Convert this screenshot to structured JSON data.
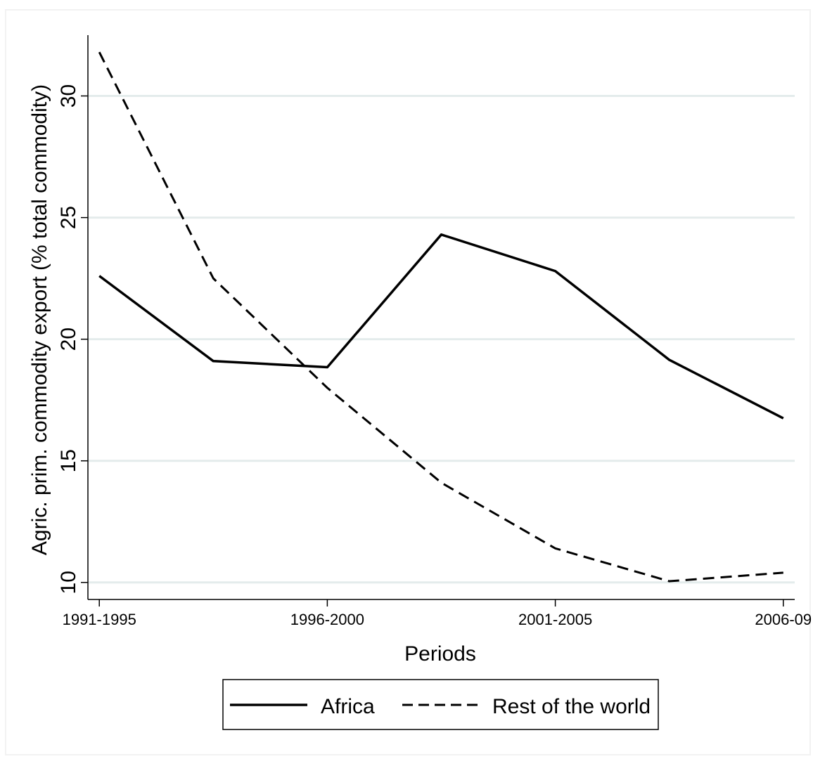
{
  "chart_data": {
    "type": "line",
    "title": "",
    "xlabel": "Periods",
    "ylabel": "Agric. prim. commodity export (% total commodity)",
    "x": [
      0,
      1,
      2,
      3,
      4,
      5,
      6
    ],
    "x_ticks": [
      {
        "x": 0,
        "label": "1991-1995"
      },
      {
        "x": 2,
        "label": "1996-2000"
      },
      {
        "x": 4,
        "label": "2001-2005"
      },
      {
        "x": 6,
        "label": "2006-09"
      }
    ],
    "xlim": [
      -0.1,
      6.1
    ],
    "y_ticks": [
      10,
      15,
      20,
      25,
      30
    ],
    "ylim": [
      9.3,
      32.5
    ],
    "grid": "horizontal",
    "legend_position": "bottom",
    "series": [
      {
        "name": "Africa",
        "style": "solid",
        "color": "#000000",
        "values": [
          22.6,
          19.1,
          18.85,
          24.3,
          22.8,
          19.15,
          16.75
        ]
      },
      {
        "name": "Rest of the world",
        "style": "dashed",
        "color": "#000000",
        "values": [
          31.8,
          22.5,
          18.0,
          14.1,
          11.4,
          10.05,
          10.4
        ]
      }
    ],
    "colors": {
      "gridline": "#e4ecec",
      "axis": "#000000",
      "background": "#ffffff",
      "frame": "#f4f4f4"
    }
  }
}
